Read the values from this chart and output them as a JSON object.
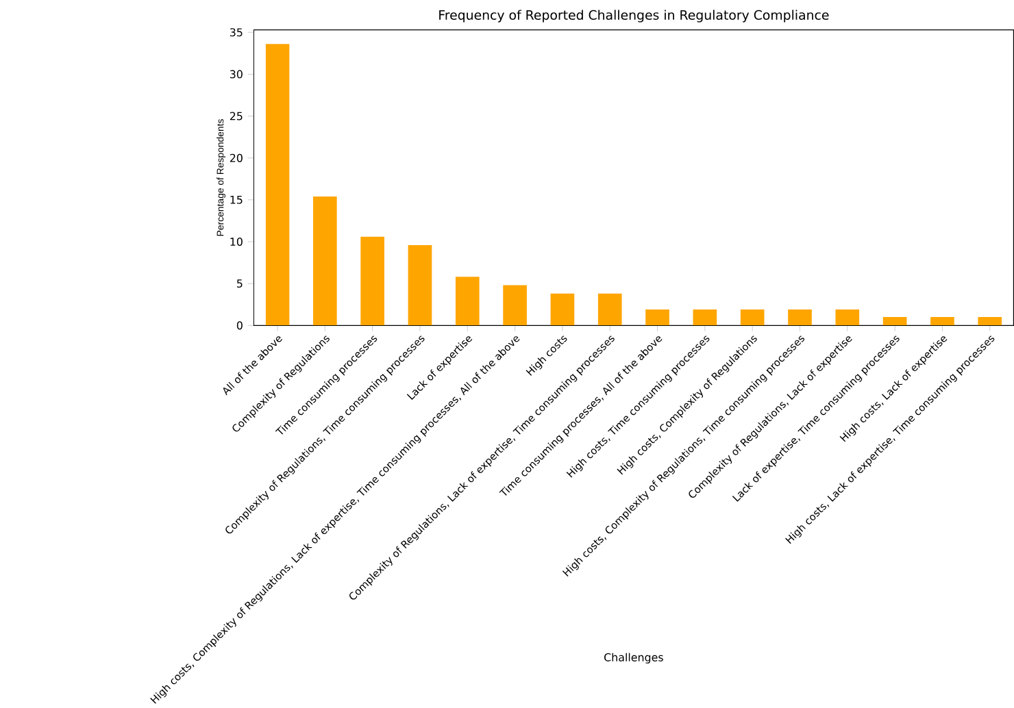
{
  "chart_data": {
    "type": "bar",
    "title": "Frequency of Reported Challenges in Regulatory Compliance",
    "xlabel": "Challenges",
    "ylabel": "Percentage of Respondents",
    "categories": [
      "All of the above",
      "Complexity of Regulations",
      "Time consuming processes",
      "Complexity of Regulations, Time consuming processes",
      "Lack of expertise",
      "High costs, Complexity of Regulations, Lack of expertise, Time consuming processes, All of the above",
      "High costs",
      "Complexity of Regulations, Lack of expertise, Time consuming processes",
      "Time consuming processes, All of the above",
      "High costs, Time consuming processes",
      "High costs, Complexity of Regulations",
      "High costs, Complexity of Regulations, Time consuming processes",
      "Complexity of Regulations, Lack of expertise",
      "Lack of expertise, Time consuming processes",
      "High costs, Lack of expertise",
      "High costs, Lack of expertise, Time consuming processes"
    ],
    "values": [
      33.6,
      15.4,
      10.6,
      9.6,
      5.8,
      4.8,
      3.8,
      3.8,
      1.9,
      1.9,
      1.9,
      1.9,
      1.9,
      1.0,
      1.0,
      1.0
    ],
    "color": "#ffa500",
    "ylim": [
      0,
      35.3
    ],
    "yticks": [
      0,
      5,
      10,
      15,
      20,
      25,
      30,
      35
    ]
  }
}
